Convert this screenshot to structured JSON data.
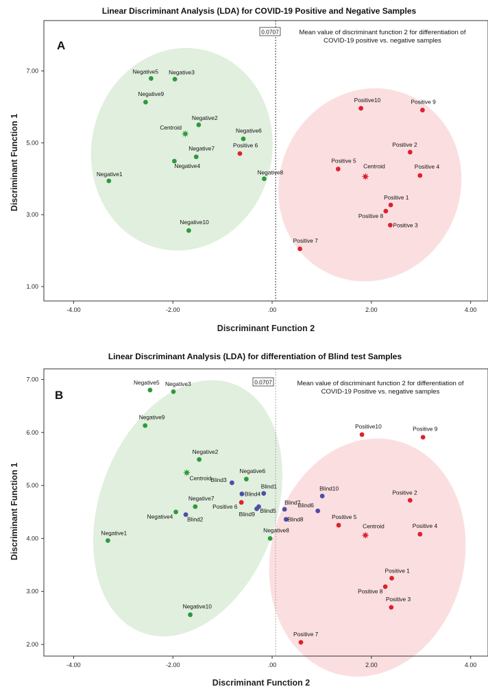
{
  "chart_data": [
    {
      "type": "scatter",
      "panel_label": "A",
      "title": "Linear Discriminant Analysis (LDA) for COVID-19 Positive and Negative Samples",
      "xlabel": "Discriminant Function 2",
      "ylabel": "Discriminant Function 1",
      "xlim": [
        -4.6,
        4.35
      ],
      "ylim": [
        0.6,
        8.4
      ],
      "xticks": [
        -4,
        -2,
        0,
        2,
        4
      ],
      "xtick_labels": [
        "-4.00",
        "-2.00",
        ".00",
        "2.00",
        "4.00"
      ],
      "yticks": [
        1,
        3,
        5,
        7
      ],
      "ytick_labels": [
        "1.00",
        "3.00",
        "5.00",
        "7.00"
      ],
      "reference_line": {
        "x": 0.0707,
        "label": "0.0707",
        "note": "Mean value of discriminant function 2 for differentiation of COVID-19 positive vs. negative samples"
      },
      "colors": {
        "negative": "#2e9a3a",
        "positive": "#e0202e",
        "blind": "#4b4fa6",
        "negative_ellipse": "#e1efde",
        "positive_ellipse": "#fbdfe0"
      },
      "ellipses": [
        {
          "group": "negative",
          "cx": -1.82,
          "cy": 4.82,
          "rx": 1.82,
          "ry": 2.83,
          "rotate": 12
        },
        {
          "group": "positive",
          "cx": 1.97,
          "cy": 3.83,
          "rx": 1.82,
          "ry": 2.72,
          "rotate": 24
        }
      ],
      "series": [
        {
          "name": "Negative",
          "points": [
            {
              "label": "Negative1",
              "x": -3.29,
              "y": 3.94
            },
            {
              "label": "Negative2",
              "x": -1.48,
              "y": 5.5
            },
            {
              "label": "Negative3",
              "x": -1.96,
              "y": 6.77
            },
            {
              "label": "Negative4",
              "x": -1.97,
              "y": 4.49
            },
            {
              "label": "Negative5",
              "x": -2.44,
              "y": 6.79
            },
            {
              "label": "Negative6",
              "x": -0.58,
              "y": 5.11
            },
            {
              "label": "Negative7",
              "x": -1.53,
              "y": 4.61
            },
            {
              "label": "Negative8",
              "x": -0.16,
              "y": 4.0
            },
            {
              "label": "Negative9",
              "x": -2.55,
              "y": 6.13
            },
            {
              "label": "Negative10",
              "x": -1.68,
              "y": 2.56
            }
          ]
        },
        {
          "name": "Positive",
          "points": [
            {
              "label": "Positive 1",
              "x": 2.39,
              "y": 3.27
            },
            {
              "label": "Positive 2",
              "x": 2.78,
              "y": 4.74
            },
            {
              "label": "Positive 3",
              "x": 2.38,
              "y": 2.71
            },
            {
              "label": "Positive 4",
              "x": 2.98,
              "y": 4.09
            },
            {
              "label": "Positive 5",
              "x": 1.33,
              "y": 4.27
            },
            {
              "label": "Positive 6",
              "x": -0.65,
              "y": 4.7
            },
            {
              "label": "Positive 7",
              "x": 0.56,
              "y": 2.05
            },
            {
              "label": "Positive 8",
              "x": 2.29,
              "y": 3.1
            },
            {
              "label": "Positive 9",
              "x": 3.03,
              "y": 5.91
            },
            {
              "label": "Positive10",
              "x": 1.79,
              "y": 5.96
            }
          ]
        },
        {
          "name": "Centroid",
          "points": [
            {
              "label": "Centroid",
              "x": -1.75,
              "y": 5.25,
              "group": "negative"
            },
            {
              "label": "Centroid",
              "x": 1.88,
              "y": 4.06,
              "group": "positive"
            }
          ]
        }
      ]
    },
    {
      "type": "scatter",
      "panel_label": "B",
      "title": "Linear Discriminant Analysis (LDA) for differentiation of Blind test Samples",
      "xlabel": "Discriminant Function 2",
      "ylabel": "Discriminant Function 1",
      "xlim": [
        -4.6,
        4.35
      ],
      "ylim": [
        1.78,
        7.2
      ],
      "xticks": [
        -4,
        -2,
        0,
        2,
        4
      ],
      "xtick_labels": [
        "-4.00",
        "-2.00",
        ".00",
        "2.00",
        "4.00"
      ],
      "yticks": [
        2,
        3,
        4,
        5,
        6,
        7
      ],
      "ytick_labels": [
        "2.00",
        "3.00",
        "4.00",
        "5.00",
        "6.00",
        "7.00"
      ],
      "reference_line": {
        "x": 0.0707,
        "label": "0.0707",
        "note": "Mean value of discriminant function 2 for differentiation of COVID-19 Positive vs. negative samples"
      },
      "colors": {
        "negative": "#2e9a3a",
        "positive": "#e0202e",
        "blind": "#4b4fa6",
        "negative_ellipse": "#e1efde",
        "positive_ellipse": "#fbdfe0"
      },
      "ellipses": [
        {
          "group": "negative",
          "cx": -1.7,
          "cy": 4.57,
          "rx": 1.78,
          "ry": 2.5,
          "rotate": 20
        },
        {
          "group": "positive",
          "cx": 1.92,
          "cy": 3.64,
          "rx": 1.95,
          "ry": 2.27,
          "rotate": 14
        }
      ],
      "series": [
        {
          "name": "Negative",
          "points": [
            {
              "label": "Negative1",
              "x": -3.31,
              "y": 3.96
            },
            {
              "label": "Negative2",
              "x": -1.47,
              "y": 5.49
            },
            {
              "label": "Negative3",
              "x": -1.99,
              "y": 6.77
            },
            {
              "label": "Negative4",
              "x": -1.94,
              "y": 4.5
            },
            {
              "label": "Negative5",
              "x": -2.46,
              "y": 6.8
            },
            {
              "label": "Negative6",
              "x": -0.52,
              "y": 5.12
            },
            {
              "label": "Negative7",
              "x": -1.55,
              "y": 4.6
            },
            {
              "label": "Negative8",
              "x": -0.04,
              "y": 4.0
            },
            {
              "label": "Negative9",
              "x": -2.56,
              "y": 6.13
            },
            {
              "label": "Negative10",
              "x": -1.65,
              "y": 2.56
            }
          ]
        },
        {
          "name": "Positive",
          "points": [
            {
              "label": "Positive 1",
              "x": 2.41,
              "y": 3.25
            },
            {
              "label": "Positive 2",
              "x": 2.78,
              "y": 4.72
            },
            {
              "label": "Positive 3",
              "x": 2.4,
              "y": 2.7
            },
            {
              "label": "Positive 4",
              "x": 2.98,
              "y": 4.08
            },
            {
              "label": "Positive 5",
              "x": 1.34,
              "y": 4.25
            },
            {
              "label": "Positive 6",
              "x": -0.62,
              "y": 4.68
            },
            {
              "label": "Positive 7",
              "x": 0.58,
              "y": 2.04
            },
            {
              "label": "Positive 8",
              "x": 2.28,
              "y": 3.09
            },
            {
              "label": "Positive 9",
              "x": 3.04,
              "y": 5.91
            },
            {
              "label": "Positive10",
              "x": 1.81,
              "y": 5.96
            }
          ]
        },
        {
          "name": "Centroid",
          "points": [
            {
              "label": "Centroid",
              "x": -1.72,
              "y": 5.24,
              "group": "negative"
            },
            {
              "label": "Centroid",
              "x": 1.88,
              "y": 4.06,
              "group": "positive"
            }
          ]
        },
        {
          "name": "Blind",
          "points": [
            {
              "label": "Blind1",
              "x": -0.17,
              "y": 4.85
            },
            {
              "label": "Blind2",
              "x": -1.74,
              "y": 4.45
            },
            {
              "label": "Blind3",
              "x": -0.81,
              "y": 5.05
            },
            {
              "label": "Blind4",
              "x": -0.61,
              "y": 4.84
            },
            {
              "label": "Blind5",
              "x": -0.27,
              "y": 4.6
            },
            {
              "label": "Blind6",
              "x": 0.92,
              "y": 4.52
            },
            {
              "label": "Blind7",
              "x": 0.25,
              "y": 4.55
            },
            {
              "label": "Blind8",
              "x": 0.28,
              "y": 4.36
            },
            {
              "label": "Blind9",
              "x": -0.31,
              "y": 4.56
            },
            {
              "label": "Blind10",
              "x": 1.01,
              "y": 4.8
            }
          ]
        }
      ]
    }
  ]
}
